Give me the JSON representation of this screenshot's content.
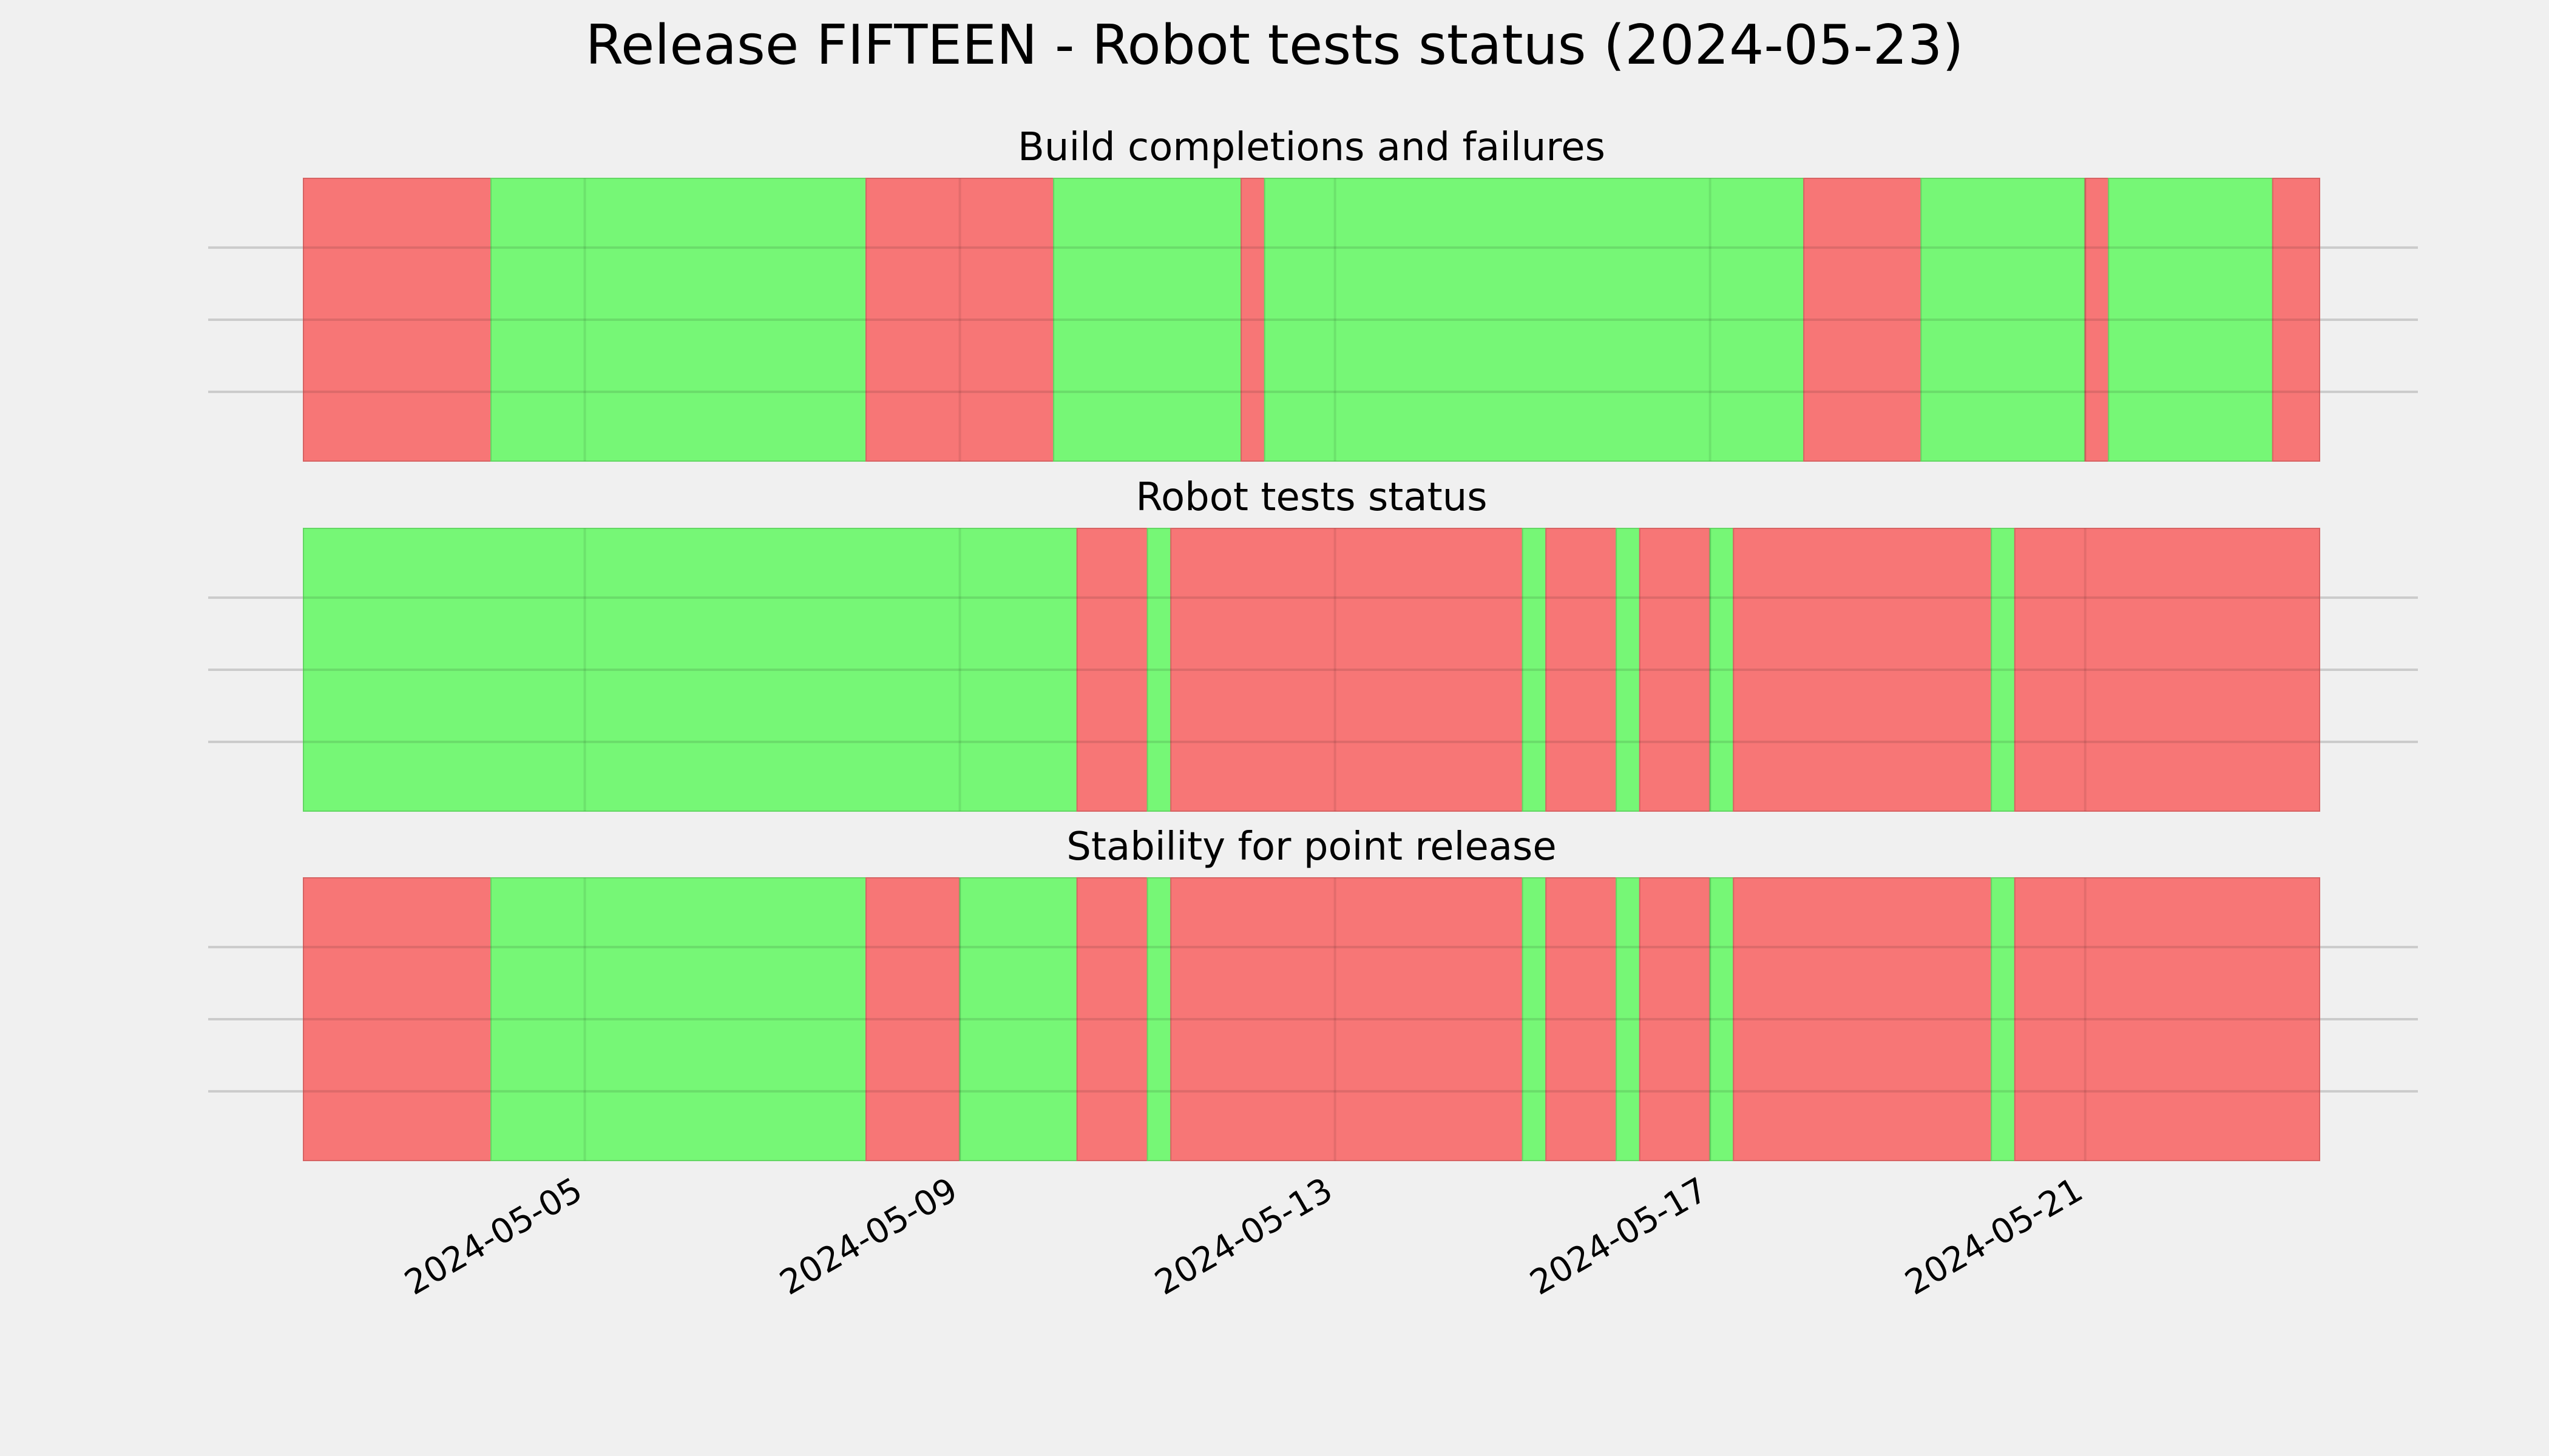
{
  "chart_data": {
    "type": "timeline",
    "title": "Release FIFTEEN - Robot tests status (2024-05-23)",
    "x_axis": {
      "type": "date",
      "range": [
        "2024-05-02",
        "2024-05-23.5"
      ],
      "tick_labels": [
        "2024-05-05",
        "2024-05-09",
        "2024-05-13",
        "2024-05-17",
        "2024-05-21"
      ],
      "tick_label_rotation": 30
    },
    "grid": true,
    "colors": {
      "pass": "#76f776",
      "fail": "#f77676",
      "background": "#f0f0f0",
      "grid": "#cbcbcb"
    },
    "panels": [
      {
        "title": "Build completions and failures",
        "segments": [
          {
            "start": "2024-05-02 00:00",
            "end": "2024-05-04 00:00",
            "status": "fail"
          },
          {
            "start": "2024-05-04 00:00",
            "end": "2024-05-08 00:00",
            "status": "pass"
          },
          {
            "start": "2024-05-08 00:00",
            "end": "2024-05-10 00:00",
            "status": "fail"
          },
          {
            "start": "2024-05-10 00:00",
            "end": "2024-05-12 00:00",
            "status": "pass"
          },
          {
            "start": "2024-05-12 00:00",
            "end": "2024-05-12 06:00",
            "status": "fail"
          },
          {
            "start": "2024-05-12 06:00",
            "end": "2024-05-18 00:00",
            "status": "pass"
          },
          {
            "start": "2024-05-18 00:00",
            "end": "2024-05-19 06:00",
            "status": "fail"
          },
          {
            "start": "2024-05-19 06:00",
            "end": "2024-05-21 00:00",
            "status": "pass"
          },
          {
            "start": "2024-05-21 00:00",
            "end": "2024-05-21 06:00",
            "status": "fail"
          },
          {
            "start": "2024-05-21 06:00",
            "end": "2024-05-23 00:00",
            "status": "pass"
          },
          {
            "start": "2024-05-23 00:00",
            "end": "2024-05-23 12:00",
            "status": "fail"
          }
        ]
      },
      {
        "title": "Robot tests status",
        "segments": [
          {
            "start": "2024-05-02 00:00",
            "end": "2024-05-10 06:00",
            "status": "pass"
          },
          {
            "start": "2024-05-10 06:00",
            "end": "2024-05-11 00:00",
            "status": "fail"
          },
          {
            "start": "2024-05-11 00:00",
            "end": "2024-05-11 06:00",
            "status": "pass"
          },
          {
            "start": "2024-05-11 06:00",
            "end": "2024-05-15 00:00",
            "status": "fail"
          },
          {
            "start": "2024-05-15 00:00",
            "end": "2024-05-15 06:00",
            "status": "pass"
          },
          {
            "start": "2024-05-15 06:00",
            "end": "2024-05-16 00:00",
            "status": "fail"
          },
          {
            "start": "2024-05-16 00:00",
            "end": "2024-05-16 06:00",
            "status": "pass"
          },
          {
            "start": "2024-05-16 06:00",
            "end": "2024-05-17 00:00",
            "status": "fail"
          },
          {
            "start": "2024-05-17 00:00",
            "end": "2024-05-17 06:00",
            "status": "pass"
          },
          {
            "start": "2024-05-17 06:00",
            "end": "2024-05-20 00:00",
            "status": "fail"
          },
          {
            "start": "2024-05-20 00:00",
            "end": "2024-05-20 06:00",
            "status": "pass"
          },
          {
            "start": "2024-05-20 06:00",
            "end": "2024-05-23 12:00",
            "status": "fail"
          }
        ]
      },
      {
        "title": "Stability for point release",
        "segments": [
          {
            "start": "2024-05-02 00:00",
            "end": "2024-05-04 00:00",
            "status": "fail"
          },
          {
            "start": "2024-05-04 00:00",
            "end": "2024-05-08 00:00",
            "status": "pass"
          },
          {
            "start": "2024-05-08 00:00",
            "end": "2024-05-09 00:00",
            "status": "fail"
          },
          {
            "start": "2024-05-09 00:00",
            "end": "2024-05-10 06:00",
            "status": "pass"
          },
          {
            "start": "2024-05-10 06:00",
            "end": "2024-05-11 00:00",
            "status": "fail"
          },
          {
            "start": "2024-05-11 00:00",
            "end": "2024-05-11 06:00",
            "status": "pass"
          },
          {
            "start": "2024-05-11 06:00",
            "end": "2024-05-15 00:00",
            "status": "fail"
          },
          {
            "start": "2024-05-15 00:00",
            "end": "2024-05-15 06:00",
            "status": "pass"
          },
          {
            "start": "2024-05-15 06:00",
            "end": "2024-05-16 00:00",
            "status": "fail"
          },
          {
            "start": "2024-05-16 00:00",
            "end": "2024-05-16 06:00",
            "status": "pass"
          },
          {
            "start": "2024-05-16 06:00",
            "end": "2024-05-17 00:00",
            "status": "fail"
          },
          {
            "start": "2024-05-17 00:00",
            "end": "2024-05-17 06:00",
            "status": "pass"
          },
          {
            "start": "2024-05-17 06:00",
            "end": "2024-05-20 00:00",
            "status": "fail"
          },
          {
            "start": "2024-05-20 00:00",
            "end": "2024-05-20 06:00",
            "status": "pass"
          },
          {
            "start": "2024-05-20 06:00",
            "end": "2024-05-23 12:00",
            "status": "fail"
          }
        ]
      }
    ]
  }
}
